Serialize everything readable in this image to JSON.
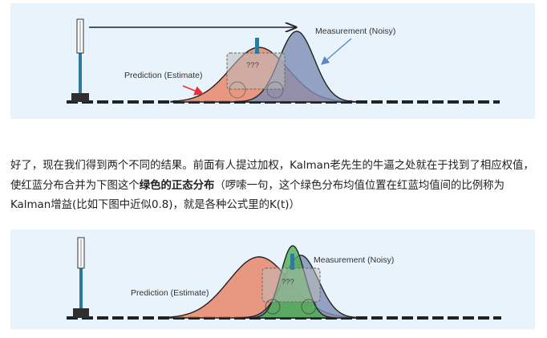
{
  "top_diagram": {
    "measurement_label": "Measurement (Noisy)",
    "prediction_label": "Prediction (Estimate)",
    "unknown_label": "???"
  },
  "bottom_diagram": {
    "measurement_label": "Measurement (Noisy)",
    "prediction_label": "Prediction (Estimate)",
    "unknown_label": "???"
  },
  "paragraph": {
    "part1": "好了，现在我们得到两个不同的结果。前面有人提过加权，Kalman老先生的牛逼之处就在于找到了相应权值，使红蓝分布合并为下图这个",
    "bold": "绿色的正态分布",
    "part2": "（啰嗦一句，这个绿色分布均值位置在红蓝均值间的比例称为Kalman增益(比如下图中近似0.8)，就是各种公式里的K(t)）"
  },
  "colors": {
    "panel_bg": "#e9f3fb",
    "prediction": "#e8866a",
    "measurement": "#7d8db5",
    "fused": "#4caf50",
    "track": "#222222",
    "arrow_red": "#e8303a",
    "arrow_blue": "#5b86c5"
  }
}
